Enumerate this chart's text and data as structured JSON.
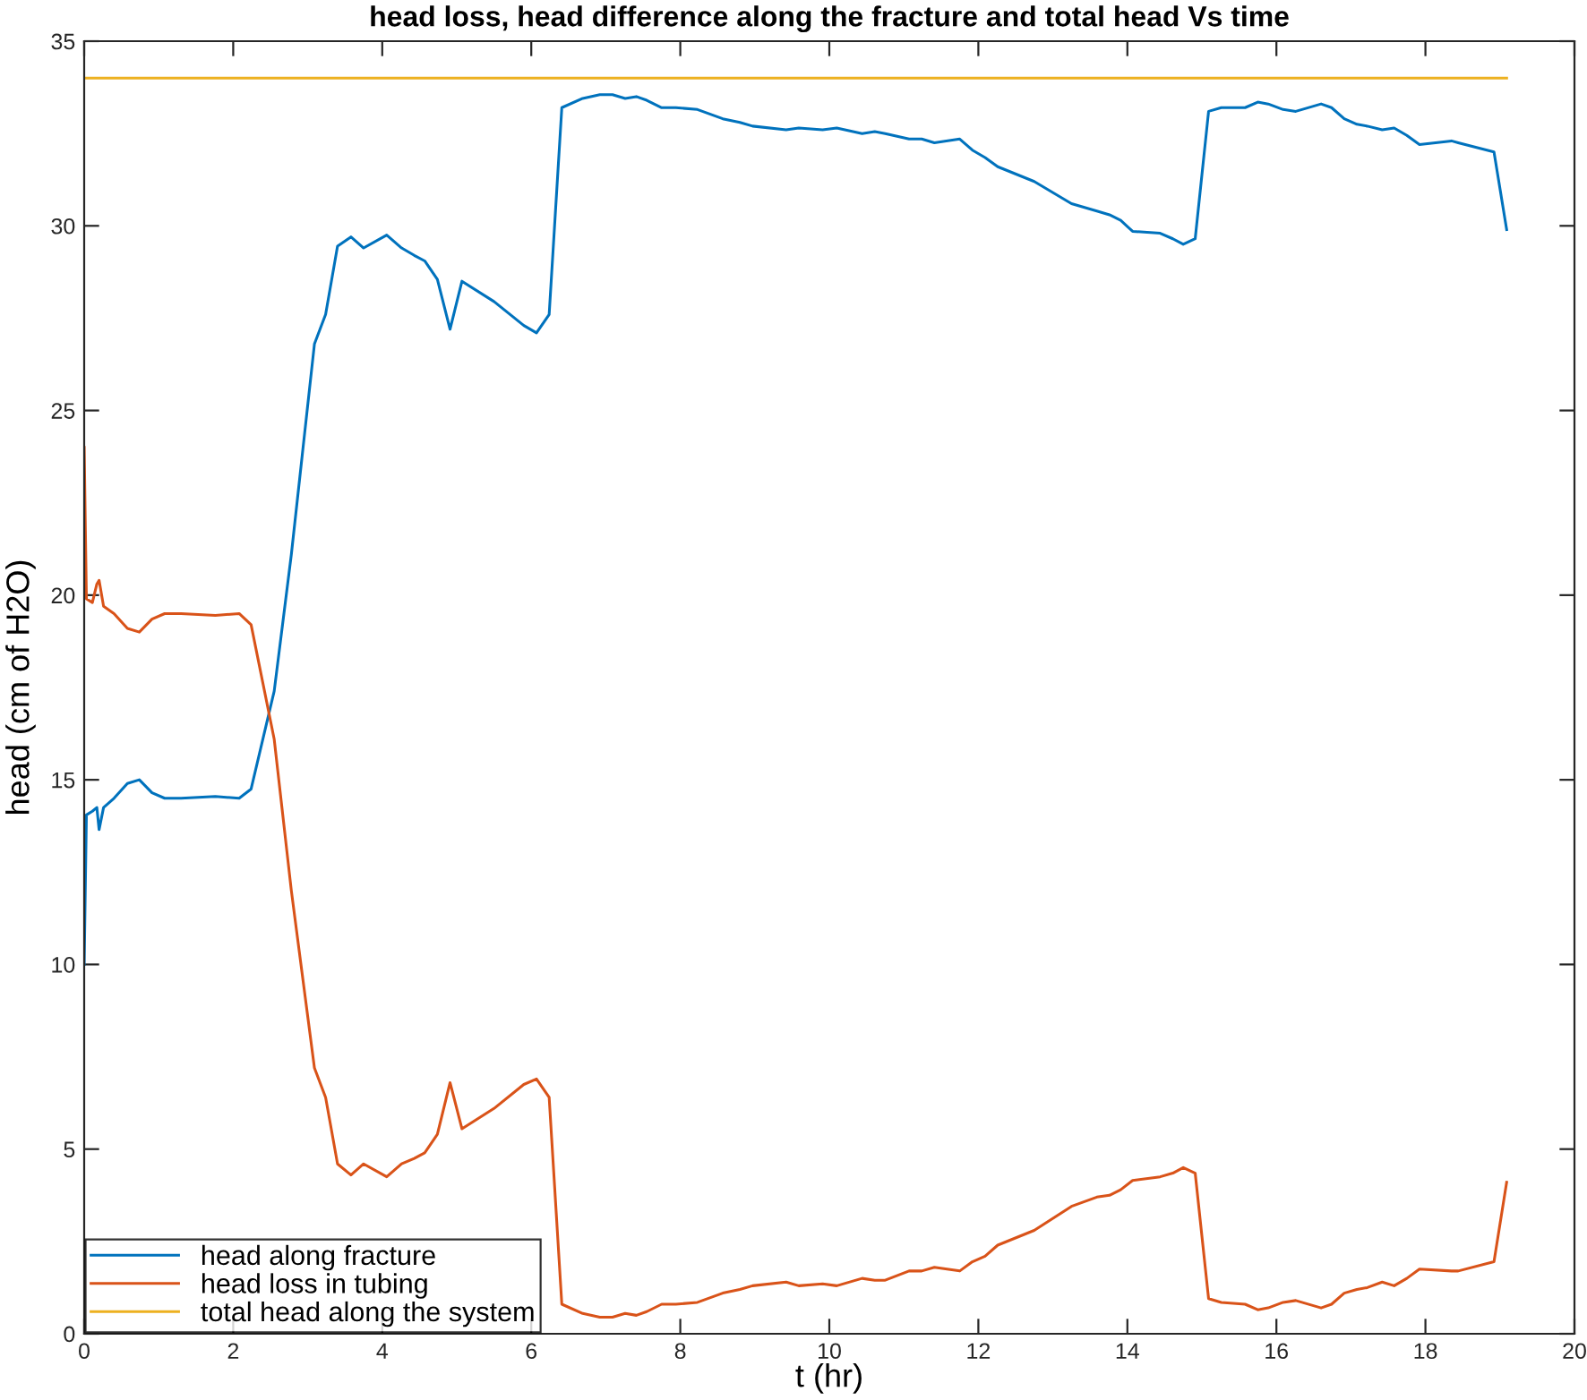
{
  "chart_data": {
    "type": "line",
    "title": "head loss, head difference along the fracture and total head Vs time",
    "xlabel": "t (hr)",
    "ylabel": "head (cm of H2O)",
    "x": [
      0,
      0.03,
      0.11,
      0.17,
      0.2,
      0.26,
      0.4,
      0.58,
      0.74,
      0.91,
      1.08,
      1.3,
      1.76,
      2.08,
      2.24,
      2.55,
      2.78,
      3.09,
      3.24,
      3.4,
      3.58,
      3.75,
      4.06,
      4.26,
      4.43,
      4.57,
      4.74,
      4.91,
      5.07,
      5.5,
      5.9,
      6.07,
      6.24,
      6.41,
      6.69,
      6.92,
      7.09,
      7.26,
      7.41,
      7.55,
      7.75,
      7.94,
      8.23,
      8.57,
      8.8,
      8.97,
      9.42,
      9.59,
      9.91,
      10.1,
      10.44,
      10.61,
      10.75,
      11.07,
      11.24,
      11.41,
      11.75,
      11.92,
      12.09,
      12.26,
      12.75,
      13.25,
      13.59,
      13.76,
      13.91,
      14.07,
      14.44,
      14.61,
      14.75,
      14.91,
      15.09,
      15.26,
      15.58,
      15.75,
      15.89,
      16.09,
      16.26,
      16.6,
      16.74,
      16.91,
      17.08,
      17.22,
      17.42,
      17.58,
      17.75,
      17.92,
      18.35,
      18.44,
      18.92,
      19.09
    ],
    "series": [
      {
        "name": "head along fracture",
        "color": "#0072bd",
        "values": [
          10.0,
          14.05,
          14.15,
          14.25,
          13.65,
          14.25,
          14.5,
          14.9,
          15.0,
          14.65,
          14.5,
          14.5,
          14.55,
          14.5,
          14.75,
          17.4,
          21.1,
          26.8,
          27.6,
          29.45,
          29.7,
          29.4,
          29.75,
          29.4,
          29.2,
          29.05,
          28.55,
          27.2,
          28.5,
          27.95,
          27.3,
          27.1,
          27.6,
          33.2,
          33.45,
          33.55,
          33.55,
          33.45,
          33.5,
          33.4,
          33.2,
          33.2,
          33.15,
          32.9,
          32.8,
          32.7,
          32.6,
          32.65,
          32.6,
          32.65,
          32.5,
          32.55,
          32.5,
          32.35,
          32.35,
          32.25,
          32.35,
          32.05,
          31.85,
          31.6,
          31.2,
          30.6,
          30.4,
          30.3,
          30.15,
          29.85,
          29.8,
          29.65,
          29.5,
          29.65,
          33.1,
          33.2,
          33.2,
          33.35,
          33.3,
          33.15,
          33.1,
          33.3,
          33.2,
          32.9,
          32.75,
          32.7,
          32.6,
          32.65,
          32.45,
          32.2,
          32.3,
          32.25,
          32.0,
          29.9
        ]
      },
      {
        "name": "head loss in tubing",
        "color": "#d95319",
        "values": [
          24.0,
          19.9,
          19.8,
          20.3,
          20.4,
          19.7,
          19.5,
          19.1,
          19.0,
          19.35,
          19.5,
          19.5,
          19.45,
          19.5,
          19.2,
          16.1,
          12.0,
          7.2,
          6.4,
          4.6,
          4.3,
          4.6,
          4.25,
          4.6,
          4.75,
          4.9,
          5.4,
          6.8,
          5.55,
          6.1,
          6.75,
          6.9,
          6.4,
          0.8,
          0.55,
          0.45,
          0.45,
          0.55,
          0.5,
          0.6,
          0.8,
          0.8,
          0.85,
          1.1,
          1.2,
          1.3,
          1.4,
          1.3,
          1.35,
          1.3,
          1.5,
          1.45,
          1.45,
          1.7,
          1.7,
          1.8,
          1.7,
          1.95,
          2.1,
          2.4,
          2.8,
          3.45,
          3.7,
          3.75,
          3.9,
          4.15,
          4.25,
          4.35,
          4.5,
          4.35,
          0.95,
          0.85,
          0.8,
          0.65,
          0.7,
          0.85,
          0.9,
          0.7,
          0.8,
          1.1,
          1.2,
          1.25,
          1.4,
          1.3,
          1.5,
          1.75,
          1.7,
          1.7,
          1.95,
          4.1
        ]
      },
      {
        "name": "total head along the system",
        "color": "#edb120",
        "x": [
          0,
          19.09
        ],
        "values": [
          34.0,
          34.0
        ]
      }
    ],
    "xlim": [
      0,
      20
    ],
    "xticks": [
      0,
      2,
      4,
      6,
      8,
      10,
      12,
      14,
      16,
      18,
      20
    ],
    "ylim": [
      0,
      35
    ],
    "yticks": [
      0,
      5,
      10,
      15,
      20,
      25,
      30,
      35
    ],
    "legend": "bottom left",
    "grid": false,
    "marker": "none",
    "line_style": "solid"
  }
}
